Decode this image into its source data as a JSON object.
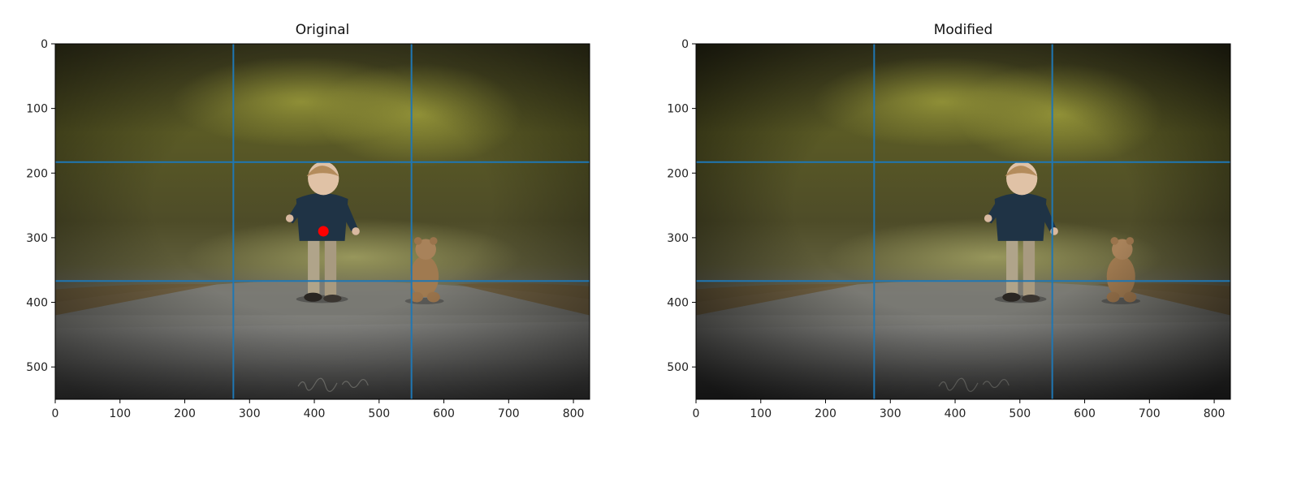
{
  "chart_data": [
    {
      "type": "image",
      "title": "Original",
      "image_size": [
        825,
        550
      ],
      "xlim": [
        0,
        825
      ],
      "ylim": [
        550,
        0
      ],
      "xticks": [
        0,
        100,
        200,
        300,
        400,
        500,
        600,
        700,
        800
      ],
      "yticks": [
        0,
        100,
        200,
        300,
        400,
        500
      ],
      "grid_lines": {
        "x": [
          275,
          550
        ],
        "y": [
          183,
          367
        ]
      },
      "grid_color": "#1f77b4",
      "marker": {
        "x": 414,
        "y": 290,
        "color": "#ff0000"
      },
      "subject_x": 412,
      "teddy_x": 570,
      "watermark": "Adrian Murray"
    },
    {
      "type": "image",
      "title": "Modified",
      "image_size": [
        825,
        550
      ],
      "xlim": [
        0,
        825
      ],
      "ylim": [
        550,
        0
      ],
      "xticks": [
        0,
        100,
        200,
        300,
        400,
        500,
        600,
        700,
        800
      ],
      "yticks": [
        0,
        100,
        200,
        300,
        400,
        500
      ],
      "grid_lines": {
        "x": [
          275,
          550
        ],
        "y": [
          183,
          367
        ]
      },
      "grid_color": "#1f77b4",
      "subject_x": 501,
      "teddy_x": 656,
      "watermark": "Adrian Murray"
    }
  ]
}
